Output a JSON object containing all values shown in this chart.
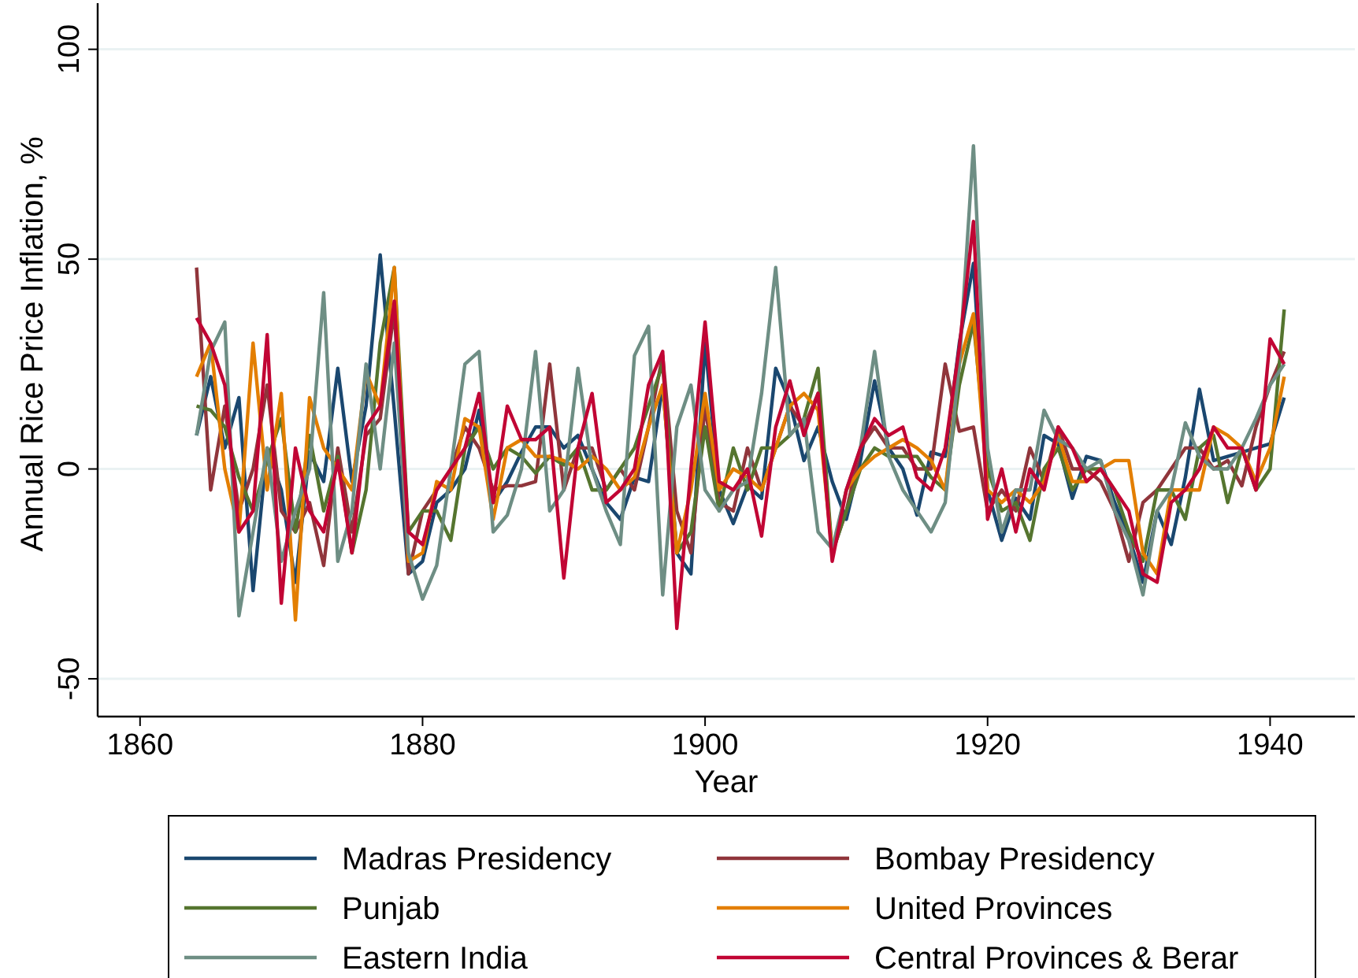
{
  "chart_data": {
    "type": "line",
    "xlabel": "Year",
    "ylabel": "Annual Rice Price Inflation, %",
    "x": [
      1864,
      1865,
      1866,
      1867,
      1868,
      1869,
      1870,
      1871,
      1872,
      1873,
      1874,
      1875,
      1876,
      1877,
      1878,
      1879,
      1880,
      1881,
      1882,
      1883,
      1884,
      1885,
      1886,
      1887,
      1888,
      1889,
      1890,
      1891,
      1892,
      1893,
      1894,
      1895,
      1896,
      1897,
      1898,
      1899,
      1900,
      1901,
      1902,
      1903,
      1904,
      1905,
      1906,
      1907,
      1908,
      1909,
      1910,
      1911,
      1912,
      1913,
      1914,
      1915,
      1916,
      1917,
      1918,
      1919,
      1920,
      1921,
      1922,
      1923,
      1924,
      1925,
      1926,
      1927,
      1928,
      1929,
      1930,
      1931,
      1932,
      1933,
      1934,
      1935,
      1936,
      1937,
      1938,
      1939,
      1940,
      1941
    ],
    "xlim": [
      1857,
      1946
    ],
    "xticks": [
      1860,
      1880,
      1900,
      1920,
      1940
    ],
    "ylim": [
      -59,
      111
    ],
    "yticks": [
      -50,
      0,
      50,
      100
    ],
    "grid": "y",
    "legend": "bottom",
    "marker": "none",
    "line_style": "solid",
    "series": [
      {
        "name": "Madras Presidency",
        "color": "#1a476f",
        "values": [
          8,
          22,
          5,
          17,
          -29,
          5,
          -5,
          -27,
          4,
          -3,
          24,
          -3,
          15,
          51,
          14,
          -25,
          -22,
          -8,
          -5,
          0,
          14,
          -8,
          -3,
          4,
          10,
          10,
          5,
          8,
          0,
          -8,
          -12,
          -2,
          -3,
          20,
          -20,
          -25,
          30,
          -5,
          -13,
          -4,
          -7,
          24,
          16,
          2,
          10,
          -3,
          -12,
          2,
          21,
          5,
          0,
          -11,
          4,
          3,
          30,
          49,
          -5,
          -17,
          -7,
          -12,
          8,
          6,
          -7,
          3,
          2,
          -8,
          -16,
          -27,
          -10,
          -18,
          -2,
          19,
          2,
          3,
          4,
          5,
          6,
          17
        ]
      },
      {
        "name": "Bombay Presidency",
        "color": "#90353b",
        "values": [
          48,
          -5,
          15,
          -10,
          0,
          20,
          -10,
          -15,
          -8,
          -23,
          5,
          -15,
          8,
          12,
          38,
          -25,
          -10,
          -5,
          0,
          10,
          5,
          -5,
          -4,
          -4,
          -3,
          25,
          -5,
          5,
          5,
          -5,
          0,
          -5,
          10,
          27,
          -10,
          -20,
          15,
          -8,
          -10,
          5,
          -5,
          5,
          15,
          10,
          18,
          -20,
          -10,
          5,
          10,
          5,
          5,
          0,
          0,
          25,
          9,
          10,
          -10,
          -5,
          -10,
          5,
          -3,
          10,
          0,
          0,
          -3,
          -10,
          -22,
          -8,
          -5,
          0,
          5,
          5,
          0,
          2,
          -4,
          10,
          20,
          28
        ]
      },
      {
        "name": "Punjab",
        "color": "#55752f",
        "values": [
          15,
          14,
          10,
          -2,
          -10,
          2,
          12,
          -15,
          8,
          -10,
          3,
          -20,
          -5,
          30,
          48,
          -15,
          -10,
          -10,
          -17,
          5,
          10,
          0,
          5,
          3,
          -1,
          3,
          1,
          5,
          -5,
          -5,
          0,
          5,
          15,
          25,
          -20,
          -15,
          10,
          -10,
          5,
          -5,
          5,
          5,
          8,
          12,
          24,
          -20,
          -10,
          0,
          5,
          3,
          3,
          3,
          -2,
          -5,
          20,
          35,
          0,
          -10,
          -8,
          -17,
          0,
          5,
          -5,
          0,
          0,
          -5,
          -15,
          -22,
          -5,
          -5,
          -12,
          5,
          8,
          -8,
          5,
          -5,
          0,
          38
        ]
      },
      {
        "name": "United Provinces",
        "color": "#e37e00",
        "values": [
          22,
          30,
          0,
          -15,
          30,
          -5,
          18,
          -36,
          17,
          5,
          0,
          -5,
          23,
          15,
          48,
          -22,
          -20,
          -3,
          -5,
          12,
          10,
          -12,
          5,
          7,
          3,
          3,
          2,
          0,
          3,
          0,
          -5,
          -2,
          10,
          20,
          -20,
          -5,
          18,
          -5,
          0,
          -2,
          -5,
          5,
          15,
          18,
          14,
          -20,
          -5,
          0,
          3,
          5,
          7,
          5,
          2,
          -5,
          25,
          37,
          -5,
          -8,
          -5,
          -8,
          -3,
          8,
          -3,
          -3,
          0,
          2,
          2,
          -20,
          -25,
          -5,
          -5,
          -5,
          10,
          8,
          5,
          -3,
          5,
          22
        ]
      },
      {
        "name": "Eastern India",
        "color": "#6e8e84",
        "values": [
          8,
          28,
          35,
          -35,
          -15,
          5,
          -22,
          -10,
          0,
          42,
          -22,
          -10,
          25,
          0,
          30,
          -20,
          -31,
          -23,
          0,
          25,
          28,
          -15,
          -11,
          0,
          28,
          -10,
          -5,
          24,
          0,
          -10,
          -18,
          27,
          34,
          -30,
          10,
          20,
          -5,
          -10,
          -5,
          -3,
          18,
          48,
          8,
          12,
          -15,
          -19,
          -5,
          5,
          28,
          3,
          -5,
          -10,
          -15,
          -8,
          25,
          77,
          5,
          -15,
          -5,
          -5,
          14,
          7,
          5,
          0,
          2,
          -10,
          -17,
          -30,
          -10,
          -5,
          11,
          3,
          0,
          0,
          5,
          12,
          20,
          25
        ]
      },
      {
        "name": "Central Provinces & Berar",
        "color": "#c10534",
        "values": [
          36,
          30,
          20,
          -15,
          -10,
          32,
          -32,
          5,
          -10,
          -15,
          2,
          -20,
          10,
          15,
          40,
          -15,
          -18,
          -5,
          0,
          5,
          18,
          -8,
          15,
          7,
          7,
          10,
          -26,
          5,
          18,
          -8,
          -5,
          0,
          20,
          28,
          -38,
          0,
          35,
          -3,
          -5,
          0,
          -16,
          10,
          21,
          8,
          18,
          -22,
          -5,
          5,
          12,
          8,
          10,
          -2,
          -5,
          5,
          29,
          59,
          -12,
          0,
          -15,
          0,
          -5,
          10,
          5,
          -3,
          0,
          -5,
          -10,
          -25,
          -27,
          -8,
          -5,
          0,
          10,
          5,
          5,
          -5,
          31,
          25
        ]
      }
    ]
  }
}
